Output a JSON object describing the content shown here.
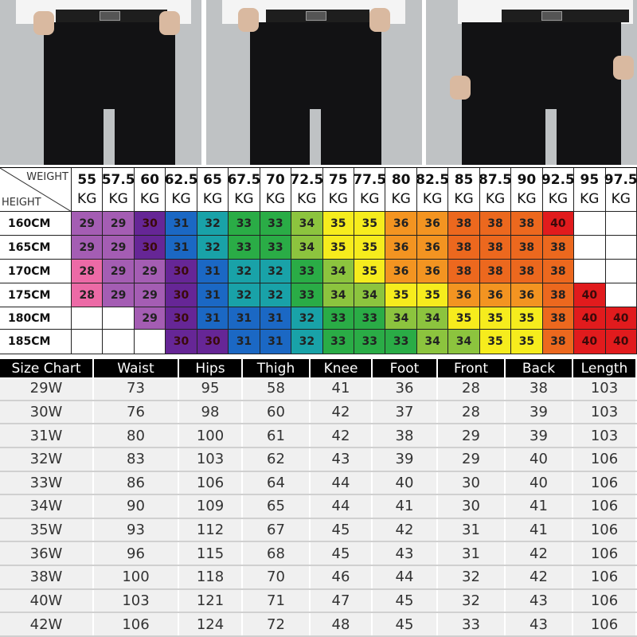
{
  "colors": {
    "28": "#ec6aa6",
    "29": "#a45db3",
    "30": "#662696",
    "31": "#1b68c4",
    "32": "#19a2a8",
    "33": "#2aac46",
    "34": "#8cc43e",
    "35": "#f6ec1d",
    "36": "#f39421",
    "38": "#ec681e",
    "40": "#e11b1d"
  },
  "size_grid": {
    "corner_weight": "WEIGHT",
    "corner_height": "HEIGHT",
    "weights": [
      "55",
      "57.5",
      "60",
      "62.5",
      "65",
      "67.5",
      "70",
      "72.5",
      "75",
      "77.5",
      "80",
      "82.5",
      "85",
      "87.5",
      "90",
      "92.5",
      "95",
      "97.5"
    ],
    "weight_unit": "KG",
    "rows": [
      {
        "height": "160CM",
        "sizes": [
          "29",
          "29",
          "30",
          "31",
          "32",
          "33",
          "33",
          "34",
          "35",
          "35",
          "36",
          "36",
          "38",
          "38",
          "38",
          "40",
          "",
          ""
        ]
      },
      {
        "height": "165CM",
        "sizes": [
          "29",
          "29",
          "30",
          "31",
          "32",
          "33",
          "33",
          "34",
          "35",
          "35",
          "36",
          "36",
          "38",
          "38",
          "38",
          "38",
          "",
          ""
        ]
      },
      {
        "height": "170CM",
        "sizes": [
          "28",
          "29",
          "29",
          "30",
          "31",
          "32",
          "32",
          "33",
          "34",
          "35",
          "36",
          "36",
          "38",
          "38",
          "38",
          "38",
          "",
          ""
        ]
      },
      {
        "height": "175CM",
        "sizes": [
          "28",
          "29",
          "29",
          "30",
          "31",
          "32",
          "32",
          "33",
          "34",
          "34",
          "35",
          "35",
          "36",
          "36",
          "36",
          "38",
          "40",
          ""
        ]
      },
      {
        "height": "180CM",
        "sizes": [
          "",
          "",
          "29",
          "30",
          "31",
          "31",
          "31",
          "32",
          "33",
          "33",
          "34",
          "34",
          "35",
          "35",
          "35",
          "38",
          "40",
          "40"
        ]
      },
      {
        "height": "185CM",
        "sizes": [
          "",
          "",
          "",
          "30",
          "30",
          "31",
          "31",
          "32",
          "33",
          "33",
          "33",
          "34",
          "34",
          "35",
          "35",
          "38",
          "40",
          "40"
        ]
      }
    ]
  },
  "measurements": {
    "headers": [
      "Size Chart",
      "Waist",
      "Hips",
      "Thigh",
      "Knee",
      "Foot",
      "Front",
      "Back",
      "Length"
    ],
    "rows": [
      [
        "29W",
        "73",
        "95",
        "58",
        "41",
        "36",
        "28",
        "38",
        "103"
      ],
      [
        "30W",
        "76",
        "98",
        "60",
        "42",
        "37",
        "28",
        "39",
        "103"
      ],
      [
        "31W",
        "80",
        "100",
        "61",
        "42",
        "38",
        "29",
        "39",
        "103"
      ],
      [
        "32W",
        "83",
        "103",
        "62",
        "43",
        "39",
        "29",
        "40",
        "106"
      ],
      [
        "33W",
        "86",
        "106",
        "64",
        "44",
        "40",
        "30",
        "40",
        "106"
      ],
      [
        "34W",
        "90",
        "109",
        "65",
        "44",
        "41",
        "30",
        "41",
        "106"
      ],
      [
        "35W",
        "93",
        "112",
        "67",
        "45",
        "42",
        "31",
        "41",
        "106"
      ],
      [
        "36W",
        "96",
        "115",
        "68",
        "45",
        "43",
        "31",
        "42",
        "106"
      ],
      [
        "38W",
        "100",
        "118",
        "70",
        "46",
        "44",
        "32",
        "42",
        "106"
      ],
      [
        "40W",
        "103",
        "121",
        "71",
        "47",
        "45",
        "32",
        "43",
        "106"
      ],
      [
        "42W",
        "106",
        "124",
        "72",
        "48",
        "45",
        "33",
        "43",
        "106"
      ]
    ]
  }
}
